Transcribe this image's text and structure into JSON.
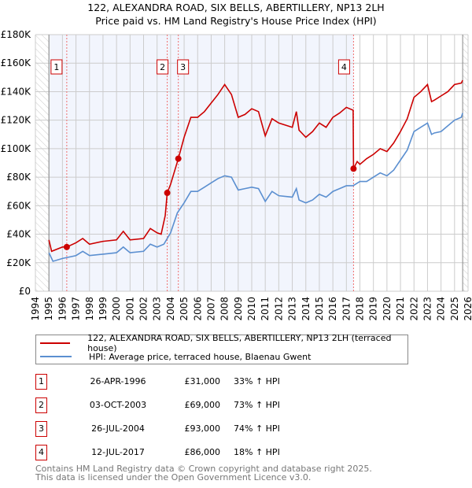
{
  "title": "122, ALEXANDRA ROAD, SIX BELLS, ABERTILLERY, NP13 2LH",
  "subtitle": "Price paid vs. HM Land Registry's House Price Index (HPI)",
  "chart_data": {
    "type": "line",
    "title": "122, ALEXANDRA ROAD, SIX BELLS, ABERTILLERY, NP13 2LH",
    "subtitle": "Price paid vs. HM Land Registry's House Price Index (HPI)",
    "xlim": [
      1994,
      2026
    ],
    "ylim": [
      0,
      180000
    ],
    "x_ticks": [
      "1994",
      "1995",
      "1996",
      "1997",
      "1998",
      "1999",
      "2000",
      "2001",
      "2002",
      "2003",
      "2004",
      "2005",
      "2006",
      "2007",
      "2008",
      "2009",
      "2010",
      "2011",
      "2012",
      "2013",
      "2014",
      "2015",
      "2016",
      "2017",
      "2018",
      "2019",
      "2020",
      "2021",
      "2022",
      "2023",
      "2024",
      "2025",
      "2026"
    ],
    "y_ticks": [
      {
        "v": 0,
        "label": "£0"
      },
      {
        "v": 20000,
        "label": "£20K"
      },
      {
        "v": 40000,
        "label": "£40K"
      },
      {
        "v": 60000,
        "label": "£60K"
      },
      {
        "v": 80000,
        "label": "£80K"
      },
      {
        "v": 100000,
        "label": "£100K"
      },
      {
        "v": 120000,
        "label": "£120K"
      },
      {
        "v": 140000,
        "label": "£140K"
      },
      {
        "v": 160000,
        "label": "£160K"
      },
      {
        "v": 180000,
        "label": "£180K"
      }
    ],
    "grid": true,
    "series": [
      {
        "name": "122, ALEXANDRA ROAD, SIX BELLS, ABERTILLERY, NP13 2LH (terraced house)",
        "color": "#cc0000",
        "x": [
          1995,
          1995.2,
          1996,
          1996.32,
          1997,
          1997.5,
          1998,
          1999,
          2000,
          2000.5,
          2001,
          2002,
          2002.5,
          2003,
          2003.3,
          2003.6,
          2003.75,
          2004,
          2004.57,
          2005,
          2005.5,
          2006,
          2006.5,
          2007,
          2007.5,
          2008,
          2008.5,
          2009,
          2009.5,
          2010,
          2010.5,
          2011,
          2011.5,
          2012,
          2013,
          2013.3,
          2013.5,
          2014,
          2014.5,
          2015,
          2015.5,
          2016,
          2016.5,
          2017,
          2017.5,
          2017.53,
          2017.8,
          2018,
          2018.5,
          2019,
          2019.5,
          2020,
          2020.5,
          2021,
          2021.5,
          2022,
          2022.5,
          2023,
          2023.3,
          2023.5,
          2024,
          2024.5,
          2025,
          2025.5,
          2025.6
        ],
        "y": [
          36000,
          28000,
          31000,
          31000,
          34000,
          37000,
          33000,
          35000,
          36000,
          42000,
          36000,
          37000,
          44000,
          41000,
          40000,
          53000,
          69000,
          75000,
          93000,
          108000,
          122000,
          122000,
          126000,
          132000,
          138000,
          145000,
          138000,
          122000,
          124000,
          128000,
          126000,
          109000,
          121000,
          118000,
          115000,
          126000,
          113000,
          108000,
          112000,
          118000,
          115000,
          122000,
          125000,
          129000,
          127000,
          86000,
          91000,
          89000,
          93000,
          96000,
          100000,
          98000,
          104000,
          112000,
          121000,
          136000,
          140000,
          145000,
          133000,
          134000,
          137000,
          140000,
          145000,
          146000,
          148000
        ]
      },
      {
        "name": "HPI: Average price, terraced house, Blaenau Gwent",
        "color": "#5b8fd0",
        "x": [
          1995,
          1995.3,
          1996,
          1997,
          1997.5,
          1998,
          1999,
          2000,
          2000.5,
          2001,
          2002,
          2002.5,
          2003,
          2003.5,
          2004,
          2004.5,
          2005,
          2005.5,
          2006,
          2006.5,
          2007,
          2007.5,
          2008,
          2008.5,
          2009,
          2009.5,
          2010,
          2010.5,
          2011,
          2011.5,
          2012,
          2013,
          2013.3,
          2013.5,
          2014,
          2014.5,
          2015,
          2015.5,
          2016,
          2016.5,
          2017,
          2017.5,
          2018,
          2018.5,
          2019,
          2019.5,
          2020,
          2020.5,
          2021,
          2021.5,
          2022,
          2022.5,
          2023,
          2023.3,
          2023.5,
          2024,
          2024.5,
          2025,
          2025.5,
          2025.6
        ],
        "y": [
          27000,
          21000,
          23000,
          25000,
          28000,
          25000,
          26000,
          27000,
          31000,
          27000,
          28000,
          33000,
          31000,
          33000,
          41000,
          55000,
          62000,
          70000,
          70000,
          73000,
          76000,
          79000,
          81000,
          80000,
          71000,
          72000,
          73000,
          72000,
          63000,
          70000,
          67000,
          66000,
          72000,
          64000,
          62000,
          64000,
          68000,
          66000,
          70000,
          72000,
          74000,
          74000,
          77000,
          77000,
          80000,
          83000,
          81000,
          85000,
          92000,
          99000,
          112000,
          115000,
          118000,
          110000,
          111000,
          112000,
          116000,
          120000,
          122000,
          125000
        ]
      }
    ],
    "sales": [
      {
        "n": "1",
        "x": 1996.32,
        "price": 31000,
        "date": "26-APR-1996",
        "price_label": "£31,000",
        "hpi": "33% ↑ HPI"
      },
      {
        "n": "2",
        "x": 2003.75,
        "price": 69000,
        "date": "03-OCT-2003",
        "price_label": "£69,000",
        "hpi": "73% ↑ HPI"
      },
      {
        "n": "3",
        "x": 2004.57,
        "price": 93000,
        "date": "26-JUL-2004",
        "price_label": "£93,000",
        "hpi": "74% ↑ HPI"
      },
      {
        "n": "4",
        "x": 2017.53,
        "price": 86000,
        "date": "12-JUL-2017",
        "price_label": "£86,000",
        "hpi": "18% ↑ HPI"
      }
    ],
    "shaded_range": [
      1995,
      2017.53
    ],
    "hatched_ranges": [
      [
        1994,
        1995
      ],
      [
        2025.6,
        2026
      ]
    ],
    "legend_placement": "bottom"
  },
  "footer": {
    "line1": "Contains HM Land Registry data © Crown copyright and database right 2025.",
    "line2": "This data is licensed under the Open Government Licence v3.0."
  }
}
